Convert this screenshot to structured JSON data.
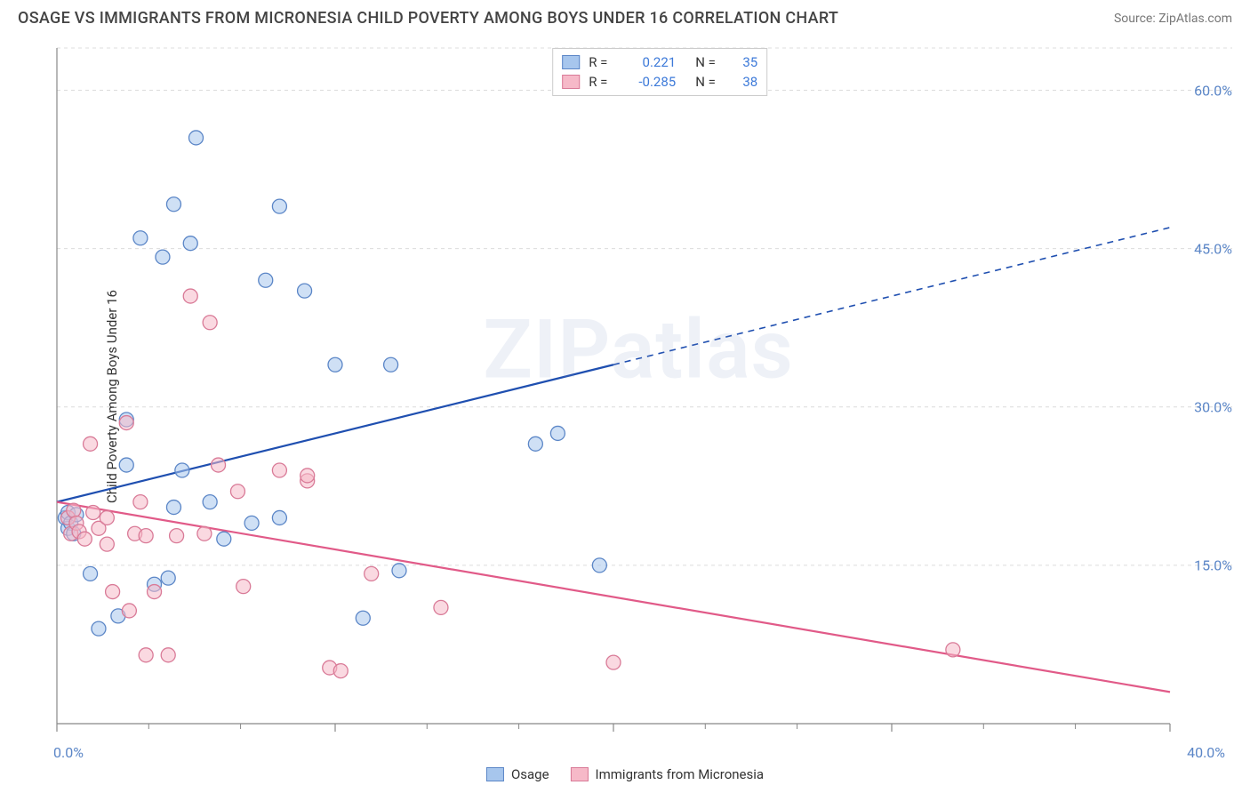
{
  "title": "OSAGE VS IMMIGRANTS FROM MICRONESIA CHILD POVERTY AMONG BOYS UNDER 16 CORRELATION CHART",
  "source": "Source: ZipAtlas.com",
  "ylabel": "Child Poverty Among Boys Under 16",
  "watermark": "ZIPatlas",
  "chart": {
    "type": "scatter",
    "xlim": [
      0,
      40
    ],
    "ylim": [
      0,
      64
    ],
    "x_ticks": [
      0,
      10,
      20,
      30,
      40
    ],
    "x_tick_labels": [
      "0.0%",
      "",
      "",
      "",
      "40.0%"
    ],
    "x_minor_ticks": [
      3.3,
      6.6,
      13.3,
      16.6,
      23.3,
      26.6,
      33.3,
      36.6
    ],
    "y_ticks": [
      15,
      30,
      45,
      60
    ],
    "y_tick_labels": [
      "15.0%",
      "30.0%",
      "45.0%",
      "60.0%"
    ],
    "background_color": "#ffffff",
    "grid_color": "#dcdcdc",
    "grid_dash": "4,4",
    "axis_color": "#888888",
    "marker_radius": 8,
    "marker_opacity": 0.55,
    "series": [
      {
        "name": "Osage",
        "color_fill": "#a7c6ed",
        "color_stroke": "#5b86c7",
        "trend_color": "#1f4fb0",
        "R": "0.221",
        "N": "35",
        "trend": {
          "x1": 0,
          "y1": 21,
          "x2": 40,
          "y2": 47,
          "solid_until_x": 20
        },
        "points": [
          [
            0.3,
            19.5
          ],
          [
            0.4,
            18.5
          ],
          [
            0.4,
            20
          ],
          [
            0.5,
            19
          ],
          [
            0.6,
            18
          ],
          [
            0.7,
            19.8
          ],
          [
            1.2,
            14.2
          ],
          [
            1.5,
            9
          ],
          [
            2.2,
            10.2
          ],
          [
            2.5,
            28.8
          ],
          [
            2.5,
            24.5
          ],
          [
            3.0,
            46.0
          ],
          [
            3.5,
            13.2
          ],
          [
            3.8,
            44.2
          ],
          [
            4.0,
            13.8
          ],
          [
            4.2,
            49.2
          ],
          [
            4.2,
            20.5
          ],
          [
            4.5,
            24
          ],
          [
            4.8,
            45.5
          ],
          [
            5.0,
            55.5
          ],
          [
            5.5,
            21
          ],
          [
            6.0,
            17.5
          ],
          [
            7.0,
            19
          ],
          [
            7.5,
            42
          ],
          [
            8.0,
            49
          ],
          [
            8.0,
            19.5
          ],
          [
            8.9,
            41
          ],
          [
            10.0,
            34
          ],
          [
            11.0,
            10.0
          ],
          [
            12.0,
            34
          ],
          [
            12.3,
            14.5
          ],
          [
            17.2,
            26.5
          ],
          [
            18.0,
            27.5
          ],
          [
            19.5,
            15
          ]
        ]
      },
      {
        "name": "Immigrants from Micronesia",
        "color_fill": "#f6b9c8",
        "color_stroke": "#d97a97",
        "trend_color": "#e15a88",
        "R": "-0.285",
        "N": "38",
        "trend": {
          "x1": 0,
          "y1": 21,
          "x2": 40,
          "y2": 3,
          "solid_until_x": 40
        },
        "points": [
          [
            0.4,
            19.5
          ],
          [
            0.5,
            18
          ],
          [
            0.6,
            20.2
          ],
          [
            0.7,
            19
          ],
          [
            0.8,
            18.2
          ],
          [
            1.0,
            17.5
          ],
          [
            1.2,
            26.5
          ],
          [
            1.3,
            20
          ],
          [
            1.5,
            18.5
          ],
          [
            1.8,
            19.5
          ],
          [
            1.8,
            17.0
          ],
          [
            2.0,
            12.5
          ],
          [
            2.5,
            28.5
          ],
          [
            2.6,
            10.7
          ],
          [
            2.8,
            18
          ],
          [
            3.0,
            21
          ],
          [
            3.2,
            17.8
          ],
          [
            3.2,
            6.5
          ],
          [
            3.5,
            12.5
          ],
          [
            4.0,
            6.5
          ],
          [
            4.3,
            17.8
          ],
          [
            4.8,
            40.5
          ],
          [
            5.3,
            18
          ],
          [
            5.5,
            38
          ],
          [
            5.8,
            24.5
          ],
          [
            6.5,
            22
          ],
          [
            6.7,
            13
          ],
          [
            8.0,
            24
          ],
          [
            9.0,
            23
          ],
          [
            9.0,
            23.5
          ],
          [
            9.8,
            5.3
          ],
          [
            10.2,
            5.0
          ],
          [
            11.3,
            14.2
          ],
          [
            13.8,
            11.0
          ],
          [
            20.0,
            5.8
          ],
          [
            32.2,
            7
          ]
        ]
      }
    ],
    "legend_top": {
      "rows": [
        {
          "swatch_fill": "#a7c6ed",
          "swatch_stroke": "#5b86c7",
          "r_label": "R =",
          "r_val": "0.221",
          "n_label": "N =",
          "n_val": "35"
        },
        {
          "swatch_fill": "#f6b9c8",
          "swatch_stroke": "#d97a97",
          "r_label": "R =",
          "r_val": "-0.285",
          "n_label": "N =",
          "n_val": "38"
        }
      ]
    },
    "legend_bottom": [
      {
        "swatch_fill": "#a7c6ed",
        "swatch_stroke": "#5b86c7",
        "label": "Osage"
      },
      {
        "swatch_fill": "#f6b9c8",
        "swatch_stroke": "#d97a97",
        "label": "Immigrants from Micronesia"
      }
    ]
  }
}
